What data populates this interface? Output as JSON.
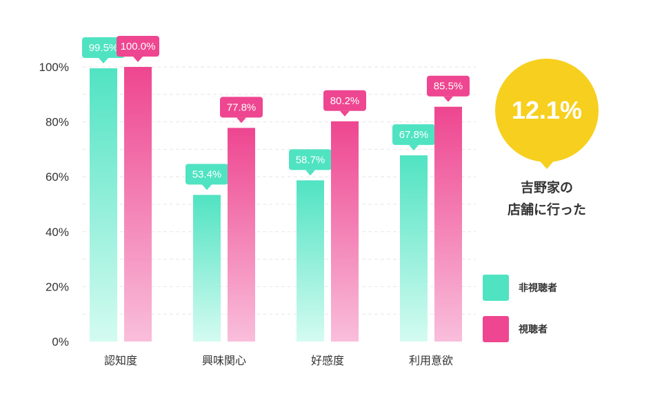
{
  "chart_data": {
    "type": "bar",
    "categories": [
      "認知度",
      "興味関心",
      "好感度",
      "利用意欲"
    ],
    "series": [
      {
        "name": "非視聴者",
        "color": "#50e3c2",
        "values": [
          99.5,
          53.4,
          58.7,
          67.8
        ]
      },
      {
        "name": "視聴者",
        "color": "#ee4690",
        "values": [
          100.0,
          77.8,
          80.2,
          85.5
        ]
      }
    ],
    "y_ticks": [
      "0%",
      "20%",
      "40%",
      "60%",
      "80%",
      "100%"
    ],
    "ylim": [
      0,
      100
    ],
    "grid": true,
    "value_labels": true
  },
  "callout": {
    "value": "12.1%",
    "caption_lines": [
      "吉野家の",
      "店舗に行った"
    ],
    "color": "#f7cf1e"
  },
  "legend": {
    "placement": "right",
    "items": [
      {
        "label": "非視聴者",
        "color": "#50e3c2"
      },
      {
        "label": "視聴者",
        "color": "#ee4690"
      }
    ]
  }
}
